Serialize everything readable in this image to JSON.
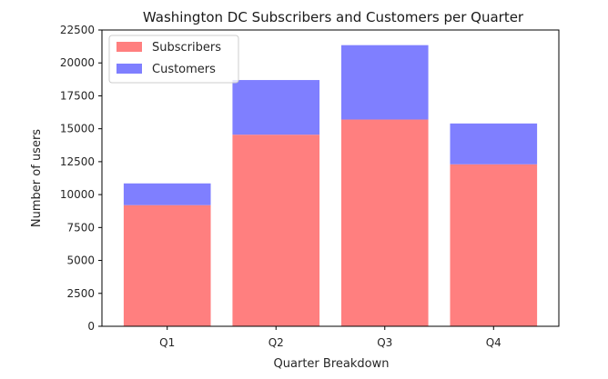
{
  "chart_data": {
    "type": "bar",
    "stacked": true,
    "title": "Washington DC Subscribers and Customers per Quarter",
    "xlabel": "Quarter Breakdown",
    "ylabel": "Number of users",
    "categories": [
      "Q1",
      "Q2",
      "Q3",
      "Q4"
    ],
    "ylim": [
      0,
      22500
    ],
    "yticks": [
      0,
      2500,
      5000,
      7500,
      10000,
      12500,
      15000,
      17500,
      20000,
      22500
    ],
    "grid": false,
    "legend_position": "top-left",
    "series": [
      {
        "name": "Subscribers",
        "color": "#ff7f7f",
        "values": [
          9200,
          14550,
          15700,
          12300
        ]
      },
      {
        "name": "Customers",
        "color": "#7f7fff",
        "values": [
          1650,
          4150,
          5650,
          3100
        ]
      }
    ]
  }
}
